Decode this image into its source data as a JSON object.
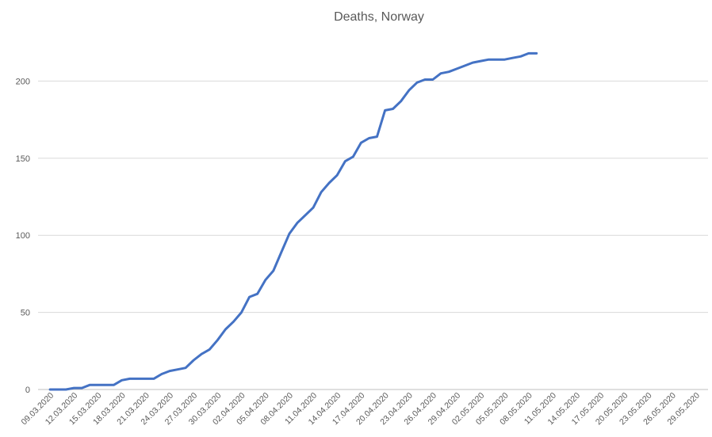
{
  "chart_data": {
    "type": "line",
    "title": "Deaths, Norway",
    "xlabel": "",
    "ylabel": "",
    "ylim": [
      0,
      230
    ],
    "yticks": [
      0,
      50,
      100,
      150,
      200
    ],
    "grid": true,
    "legend": "none",
    "color": "#4472c4",
    "x_tick_labels": [
      "09.03.2020",
      "12.03.2020",
      "15.03.2020",
      "18.03.2020",
      "21.03.2020",
      "24.03.2020",
      "27.03.2020",
      "30.03.2020",
      "02.04.2020",
      "05.04.2020",
      "08.04.2020",
      "11.04.2020",
      "14.04.2020",
      "17.04.2020",
      "20.04.2020",
      "23.04.2020",
      "26.04.2020",
      "29.04.2020",
      "02.05.2020",
      "05.05.2020",
      "08.05.2020",
      "11.05.2020",
      "14.05.2020",
      "17.05.2020",
      "20.05.2020",
      "23.05.2020",
      "26.05.2020",
      "29.05.2020"
    ],
    "series": [
      {
        "x": [
          "09.03.2020",
          "10.03.2020",
          "11.03.2020",
          "12.03.2020",
          "13.03.2020",
          "14.03.2020",
          "15.03.2020",
          "16.03.2020",
          "17.03.2020",
          "18.03.2020",
          "19.03.2020",
          "20.03.2020",
          "21.03.2020",
          "22.03.2020",
          "23.03.2020",
          "24.03.2020",
          "25.03.2020",
          "26.03.2020",
          "27.03.2020",
          "28.03.2020",
          "29.03.2020",
          "30.03.2020",
          "31.03.2020",
          "01.04.2020",
          "02.04.2020",
          "03.04.2020",
          "04.04.2020",
          "05.04.2020",
          "06.04.2020",
          "07.04.2020",
          "08.04.2020",
          "09.04.2020",
          "10.04.2020",
          "11.04.2020",
          "12.04.2020",
          "13.04.2020",
          "14.04.2020",
          "15.04.2020",
          "16.04.2020",
          "17.04.2020",
          "18.04.2020",
          "19.04.2020",
          "20.04.2020",
          "21.04.2020",
          "22.04.2020",
          "23.04.2020",
          "24.04.2020",
          "25.04.2020",
          "26.04.2020",
          "27.04.2020",
          "28.04.2020",
          "29.04.2020",
          "30.04.2020",
          "01.05.2020",
          "02.05.2020",
          "03.05.2020",
          "04.05.2020",
          "05.05.2020",
          "06.05.2020",
          "07.05.2020",
          "08.05.2020",
          "09.05.2020"
        ],
        "values": [
          0,
          0,
          0,
          1,
          1,
          3,
          3,
          3,
          3,
          6,
          7,
          7,
          7,
          7,
          10,
          12,
          13,
          14,
          19,
          23,
          26,
          32,
          39,
          44,
          50,
          60,
          62,
          71,
          77,
          89,
          101,
          108,
          113,
          118,
          128,
          134,
          139,
          148,
          151,
          160,
          163,
          164,
          181,
          182,
          187,
          194,
          199,
          201,
          201,
          205,
          206,
          208,
          210,
          212,
          213,
          214,
          214,
          214,
          215,
          216,
          218,
          218
        ]
      }
    ]
  }
}
